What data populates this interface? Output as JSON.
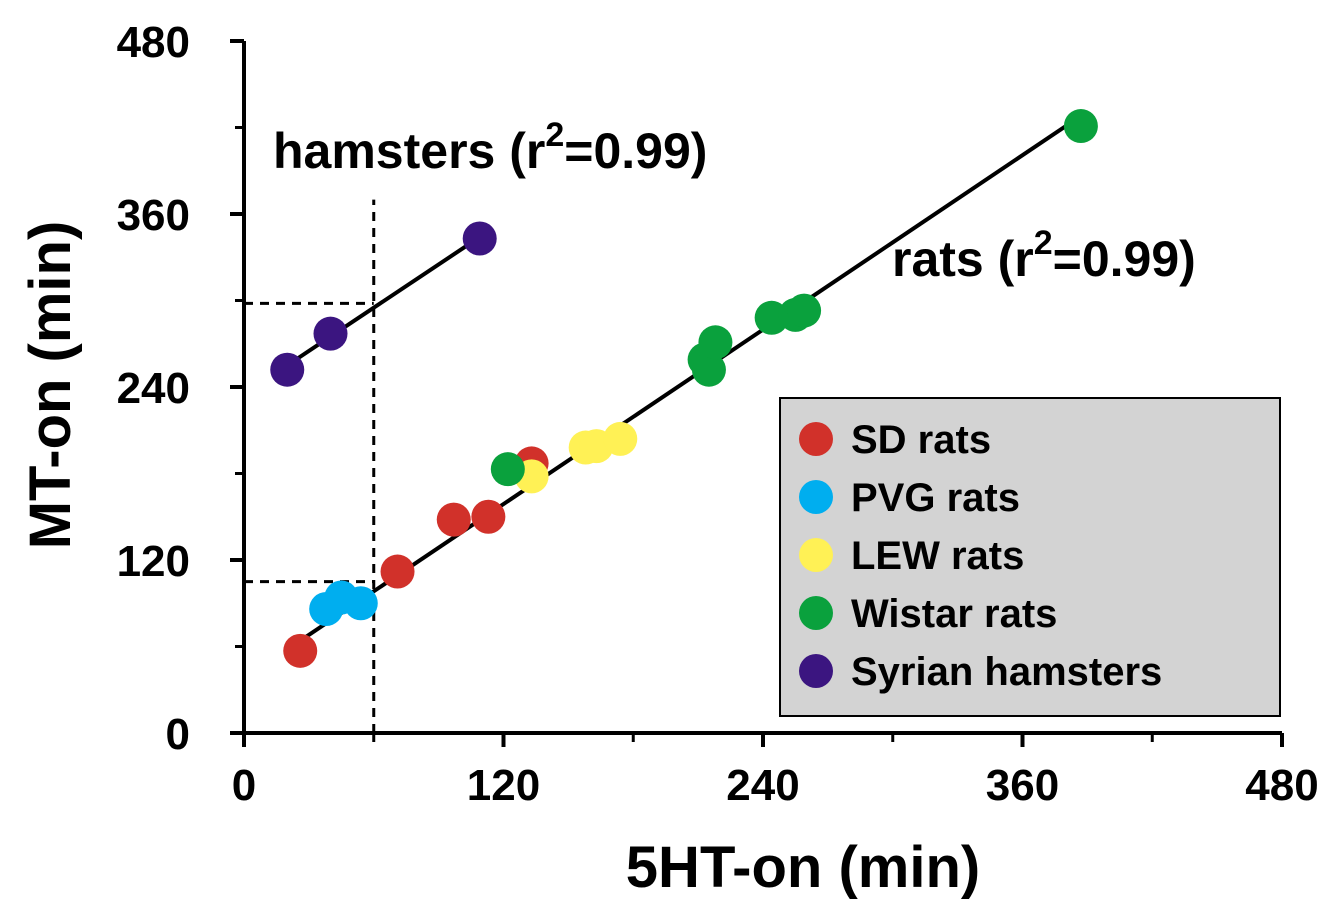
{
  "chart_data": {
    "type": "scatter",
    "xlabel": "5HT-on (min)",
    "ylabel": "MT-on (min)",
    "xlim": [
      0,
      480
    ],
    "ylim": [
      0,
      480
    ],
    "x_ticks": [
      0,
      120,
      240,
      360,
      480
    ],
    "y_ticks": [
      0,
      120,
      240,
      360,
      480
    ],
    "x_minor_ticks": [
      60,
      180,
      300,
      420
    ],
    "y_minor_ticks": [
      60,
      180,
      300,
      420
    ],
    "grid": false,
    "legend_position": "bottom-right",
    "legend_background": "#d3d3d3",
    "series": [
      {
        "name": "SD rats",
        "color": "#d1312a",
        "points": [
          [
            26,
            57
          ],
          [
            71,
            112
          ],
          [
            97,
            148
          ],
          [
            113,
            150
          ],
          [
            133,
            187
          ]
        ]
      },
      {
        "name": "PVG rats",
        "color": "#00aeef",
        "points": [
          [
            38,
            86
          ],
          [
            45,
            94
          ],
          [
            54,
            90
          ]
        ]
      },
      {
        "name": "LEW rats",
        "color": "#fff155",
        "points": [
          [
            133,
            178
          ],
          [
            158,
            198
          ],
          [
            163,
            199
          ],
          [
            174,
            204
          ]
        ]
      },
      {
        "name": "Wistar rats",
        "color": "#0aa13d",
        "points": [
          [
            122,
            183
          ],
          [
            213,
            259
          ],
          [
            215,
            252
          ],
          [
            218,
            271
          ],
          [
            244,
            288
          ],
          [
            255,
            290
          ],
          [
            259,
            293
          ],
          [
            387,
            421
          ]
        ]
      },
      {
        "name": "Syrian hamsters",
        "color": "#3b1580",
        "points": [
          [
            20,
            252
          ],
          [
            40,
            277
          ],
          [
            109,
            343
          ]
        ]
      }
    ],
    "fits": [
      {
        "label": "hamsters (r2=0.99)",
        "x": [
          20,
          109
        ],
        "y": [
          255,
          344
        ]
      },
      {
        "label": "rats (r2=0.99)",
        "x": [
          24,
          385
        ],
        "y": [
          62,
          426
        ]
      }
    ],
    "reference_lines": [
      {
        "orientation": "vertical",
        "x": 60,
        "from_y": 0,
        "to_y": 370
      },
      {
        "orientation": "horizontal",
        "y": 298,
        "from_x": 0,
        "to_x": 60
      },
      {
        "orientation": "horizontal",
        "y": 105,
        "from_x": 0,
        "to_x": 60
      }
    ],
    "annotations": [
      {
        "id": "hamsters",
        "prefix": "hamsters (r",
        "sup": "2",
        "suffix": "=0.99)"
      },
      {
        "id": "rats",
        "prefix": "rats (r",
        "sup": "2",
        "suffix": "=0.99)"
      }
    ]
  }
}
